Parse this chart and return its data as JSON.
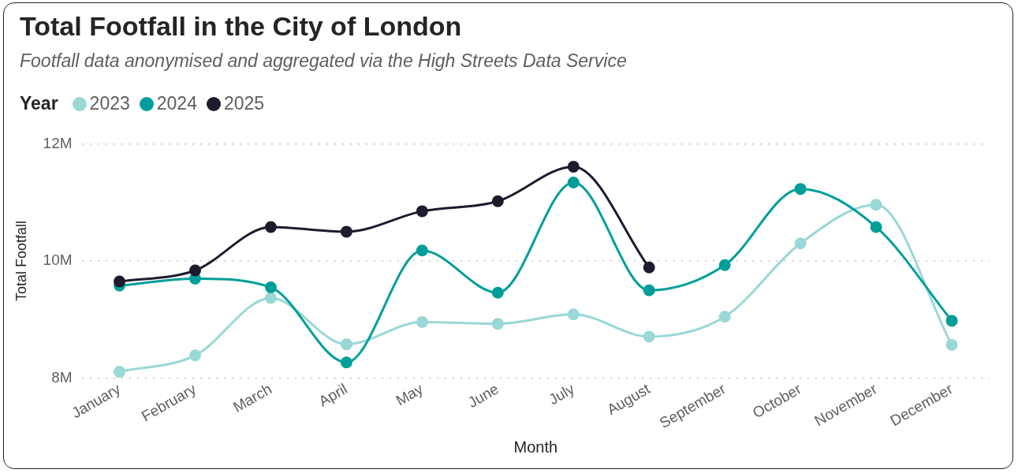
{
  "chart_data": {
    "type": "line",
    "title": "Total Footfall in the City of London",
    "subtitle": "Footfall data anonymised and aggregated via the High Streets Data Service",
    "xlabel": "Month",
    "ylabel": "Total Footfall",
    "legend_title": "Year",
    "legend": "top left",
    "grid": "y",
    "marker": "circle",
    "line_style": "solid",
    "categories": [
      "January",
      "February",
      "March",
      "April",
      "May",
      "June",
      "July",
      "August",
      "September",
      "October",
      "November",
      "December"
    ],
    "ylim": [
      8000000,
      12000000
    ],
    "yticks": [
      {
        "value": 8000000,
        "label": "8M"
      },
      {
        "value": 10000000,
        "label": "10M"
      },
      {
        "value": 12000000,
        "label": "12M"
      }
    ],
    "series": [
      {
        "name": "2023",
        "color": "#99d8d6",
        "values": [
          8110000,
          8390000,
          9370000,
          8580000,
          8960000,
          8930000,
          9090000,
          8710000,
          9050000,
          10300000,
          10960000,
          8570000
        ]
      },
      {
        "name": "2024",
        "color": "#009e9a",
        "values": [
          9580000,
          9700000,
          9550000,
          8270000,
          10180000,
          9460000,
          11340000,
          9500000,
          9930000,
          11230000,
          10580000,
          8980000
        ]
      },
      {
        "name": "2025",
        "color": "#1e1b2e",
        "values": [
          9650000,
          9840000,
          10580000,
          10500000,
          10850000,
          11020000,
          11610000,
          9890000,
          null,
          null,
          null,
          null
        ]
      }
    ]
  }
}
